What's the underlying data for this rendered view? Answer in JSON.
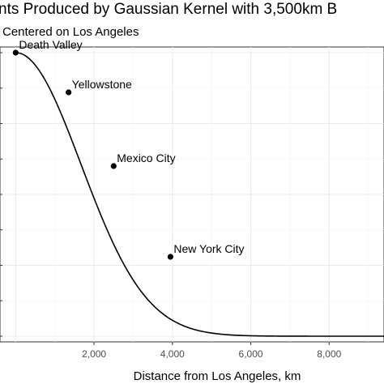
{
  "chart_data": {
    "type": "line",
    "title": "nts Produced by Gaussian Kernel with 3,500km B",
    "subtitle": "Centered on Los Angeles",
    "xlabel": "Distance from Los Angeles, km",
    "ylabel": "",
    "xlim": [
      -400,
      9400
    ],
    "ylim": [
      -0.02,
      1.02
    ],
    "xticks": [
      2000,
      4000,
      6000,
      8000
    ],
    "xtick_labels": [
      "2,000",
      "4,000",
      "6,000",
      "8,000"
    ],
    "grid": true,
    "series": [
      {
        "color": "#000000",
        "kernel": "gaussian",
        "bandwidth_km": 3500
      }
    ],
    "annotations": [
      {
        "label": "Death Valley",
        "x": 0,
        "y": 1.0
      },
      {
        "label": "Yellowstone",
        "x": 1350,
        "y": 0.86
      },
      {
        "label": "Mexico City",
        "x": 2500,
        "y": 0.6
      },
      {
        "label": "New York City",
        "x": 3950,
        "y": 0.28
      }
    ]
  }
}
